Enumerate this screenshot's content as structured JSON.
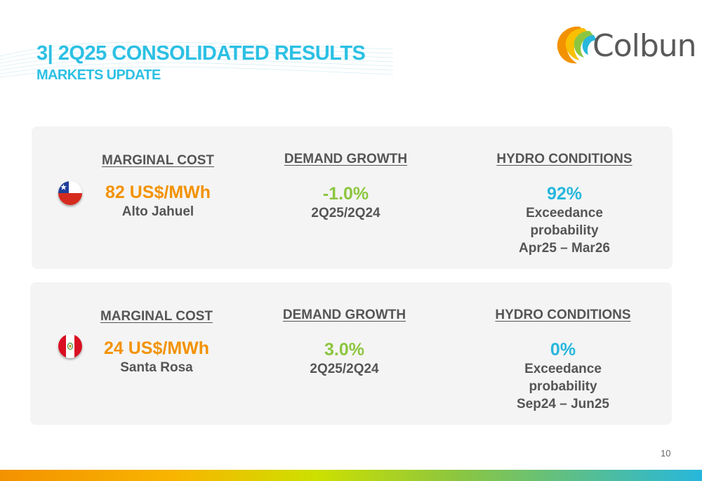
{
  "header": {
    "title": "3| 2Q25 CONSOLIDATED RESULTS",
    "subtitle": "MARKETS UPDATE"
  },
  "logo": {
    "text": "Colbun",
    "icon": "colbun-swirl-logo"
  },
  "colors": {
    "accent_blue": "#2cc0e4",
    "orange": "#f39200",
    "green": "#8cc63f",
    "blue": "#27b7dc",
    "text_gray": "#555555",
    "panel_bg": "#f4f4f4"
  },
  "chile": {
    "flag_icon": "chile-flag-icon",
    "marginal_cost": {
      "heading": "MARGINAL COST",
      "value": "82 US$/MWh",
      "location": "Alto Jahuel"
    },
    "demand_growth": {
      "heading": "DEMAND GROWTH",
      "value": "-1.0%",
      "period": "2Q25/2Q24"
    },
    "hydro": {
      "heading": "HYDRO CONDITIONS",
      "value": "92%",
      "line1": "Exceedance",
      "line2": "probability",
      "period": "Apr25 – Mar26"
    }
  },
  "peru": {
    "flag_icon": "peru-flag-icon",
    "marginal_cost": {
      "heading": "MARGINAL COST",
      "value": "24 US$/MWh",
      "location": "Santa Rosa"
    },
    "demand_growth": {
      "heading": "DEMAND GROWTH",
      "value": "3.0%",
      "period": "2Q25/2Q24"
    },
    "hydro": {
      "heading": "HYDRO CONDITIONS",
      "value": "0%",
      "line1": "Exceedance",
      "line2": "probability",
      "period": "Sep24 – Jun25"
    }
  },
  "footer": {
    "page_number": "10"
  }
}
